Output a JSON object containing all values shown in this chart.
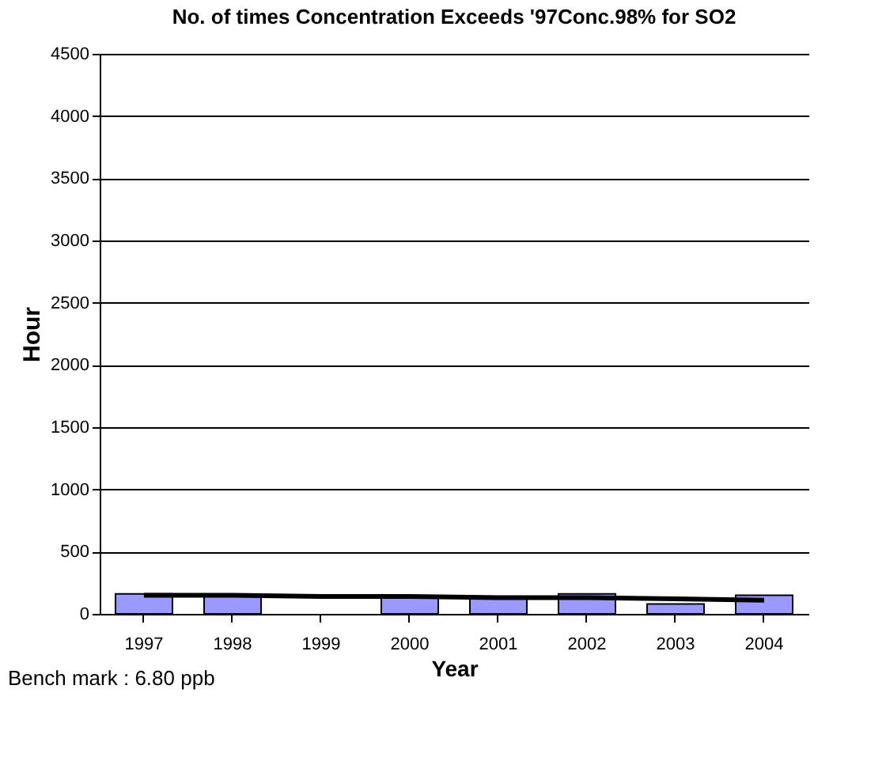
{
  "chart_data": {
    "type": "bar",
    "title": "No. of times Concentration Exceeds '97Conc.98% for SO2",
    "xlabel": "Year",
    "ylabel": "Hour",
    "categories": [
      "1997",
      "1998",
      "1999",
      "2000",
      "2001",
      "2002",
      "2003",
      "2004"
    ],
    "series": [
      {
        "color": "#9999ff",
        "values": [
          160,
          140,
          null,
          140,
          130,
          160,
          80,
          150
        ]
      },
      {
        "type": "line",
        "color": "#000000",
        "values": [
          150,
          150,
          140,
          140,
          130,
          130,
          120,
          110
        ]
      }
    ],
    "ylim": [
      0,
      4500
    ],
    "yticks": [
      0,
      500,
      1000,
      1500,
      2000,
      2500,
      3000,
      3500,
      4000,
      4500
    ],
    "grid": "y",
    "annotations": [
      "Bench mark : 6.80 ppb"
    ]
  }
}
